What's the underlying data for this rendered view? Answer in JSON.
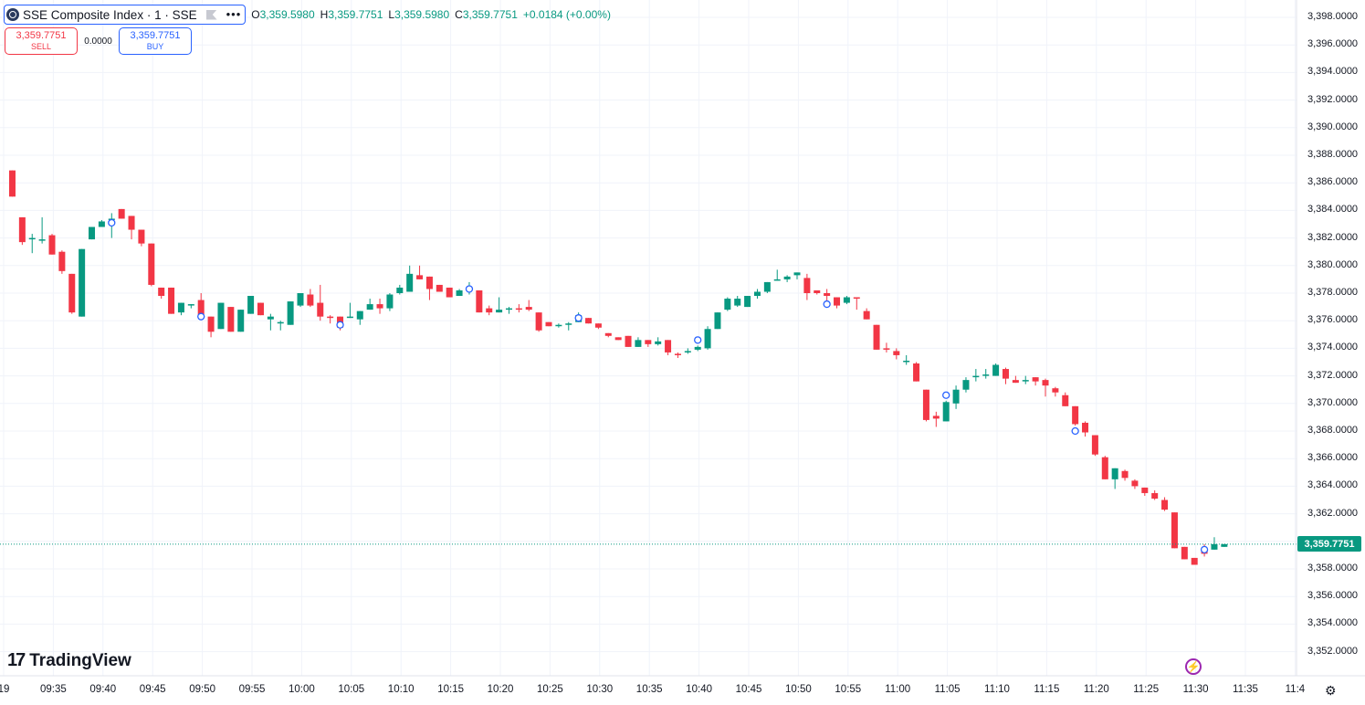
{
  "legend": {
    "symbol": "SSE Composite Index · 1 · SSE",
    "more_label": "•••",
    "ohlc": [
      {
        "key": "O",
        "value": "3,359.5980"
      },
      {
        "key": "H",
        "value": "3,359.7751"
      },
      {
        "key": "L",
        "value": "3,359.5980"
      },
      {
        "key": "C",
        "value": "3,359.7751"
      }
    ],
    "change": "+0.0184 (+0.00%)"
  },
  "trade": {
    "sell_price": "3,359.7751",
    "sell_label": "SELL",
    "spread": "0.0000",
    "buy_price": "3,359.7751",
    "buy_label": "BUY"
  },
  "price_axis": {
    "labels": [
      "3,398.0000",
      "3,396.0000",
      "3,394.0000",
      "3,392.0000",
      "3,390.0000",
      "3,388.0000",
      "3,386.0000",
      "3,384.0000",
      "3,382.0000",
      "3,380.0000",
      "3,378.0000",
      "3,376.0000",
      "3,374.0000",
      "3,372.0000",
      "3,370.0000",
      "3,368.0000",
      "3,366.0000",
      "3,364.0000",
      "3,362.0000",
      "3,360.0000",
      "3,358.0000",
      "3,356.0000",
      "3,354.0000",
      "3,352.0000"
    ],
    "last_price": "3,359.7751"
  },
  "time_axis": {
    "labels": [
      "19",
      "09:35",
      "09:40",
      "09:45",
      "09:50",
      "09:55",
      "10:00",
      "10:05",
      "10:10",
      "10:15",
      "10:20",
      "10:25",
      "10:30",
      "10:35",
      "10:40",
      "10:45",
      "10:50",
      "10:55",
      "11:00",
      "11:05",
      "11:10",
      "11:15",
      "11:20",
      "11:25",
      "11:30",
      "11:35",
      "11:4"
    ]
  },
  "branding": {
    "logo_mark": "17",
    "logo_text": "TradingView"
  },
  "colors": {
    "up": "#089981",
    "down": "#f23645",
    "grid": "#f0f3fa",
    "accent": "#2962ff"
  },
  "icons": {
    "flash": "flash-icon",
    "settings": "gear-icon",
    "symbol_logo": "exchange-logo-icon",
    "flag": "flag-icon"
  },
  "chart_data": {
    "type": "candlestick",
    "symbol": "SSE Composite Index",
    "interval": "1",
    "ylim": [
      3351,
      3399
    ],
    "grid": true,
    "candles": [
      {
        "t": "09:31",
        "o": 3386.9,
        "h": 3386.9,
        "l": 3385.0,
        "c": 3385.0
      },
      {
        "t": "09:32",
        "o": 3383.5,
        "h": 3383.5,
        "l": 3381.5,
        "c": 3381.7
      },
      {
        "t": "09:33",
        "o": 3381.9,
        "h": 3382.3,
        "l": 3380.9,
        "c": 3382.0
      },
      {
        "t": "09:34",
        "o": 3381.8,
        "h": 3383.5,
        "l": 3381.6,
        "c": 3381.9
      },
      {
        "t": "09:35",
        "o": 3382.2,
        "h": 3382.3,
        "l": 3380.8,
        "c": 3380.8
      },
      {
        "t": "09:36",
        "o": 3381.0,
        "h": 3381.1,
        "l": 3379.4,
        "c": 3379.6
      },
      {
        "t": "09:37",
        "o": 3379.4,
        "h": 3379.4,
        "l": 3376.5,
        "c": 3376.6
      },
      {
        "t": "09:38",
        "o": 3376.3,
        "h": 3381.2,
        "l": 3376.3,
        "c": 3381.2
      },
      {
        "t": "09:39",
        "o": 3381.9,
        "h": 3382.8,
        "l": 3381.9,
        "c": 3382.8
      },
      {
        "t": "09:40",
        "o": 3382.8,
        "h": 3383.3,
        "l": 3382.8,
        "c": 3383.2
      },
      {
        "t": "09:41",
        "o": 3383.4,
        "h": 3383.8,
        "l": 3382.0,
        "c": 3383.4
      },
      {
        "t": "09:42",
        "o": 3384.1,
        "h": 3384.1,
        "l": 3383.4,
        "c": 3383.4
      },
      {
        "t": "09:43",
        "o": 3383.6,
        "h": 3383.6,
        "l": 3381.9,
        "c": 3382.6
      },
      {
        "t": "09:44",
        "o": 3382.6,
        "h": 3382.6,
        "l": 3381.4,
        "c": 3381.6
      },
      {
        "t": "09:45",
        "o": 3381.6,
        "h": 3381.6,
        "l": 3378.5,
        "c": 3378.6
      },
      {
        "t": "09:46",
        "o": 3378.4,
        "h": 3378.4,
        "l": 3377.6,
        "c": 3377.8
      },
      {
        "t": "09:47",
        "o": 3378.4,
        "h": 3378.4,
        "l": 3376.5,
        "c": 3376.5
      },
      {
        "t": "09:48",
        "o": 3376.6,
        "h": 3377.3,
        "l": 3376.4,
        "c": 3377.3
      },
      {
        "t": "09:49",
        "o": 3377.2,
        "h": 3377.2,
        "l": 3376.9,
        "c": 3377.2
      },
      {
        "t": "09:50",
        "o": 3377.5,
        "h": 3378.0,
        "l": 3376.2,
        "c": 3376.3
      },
      {
        "t": "09:51",
        "o": 3376.3,
        "h": 3376.3,
        "l": 3374.8,
        "c": 3375.2
      },
      {
        "t": "09:52",
        "o": 3375.4,
        "h": 3377.3,
        "l": 3375.4,
        "c": 3377.3
      },
      {
        "t": "09:53",
        "o": 3377.0,
        "h": 3377.0,
        "l": 3375.2,
        "c": 3375.2
      },
      {
        "t": "09:54",
        "o": 3375.2,
        "h": 3376.8,
        "l": 3375.2,
        "c": 3376.8
      },
      {
        "t": "09:55",
        "o": 3376.5,
        "h": 3377.8,
        "l": 3376.5,
        "c": 3377.8
      },
      {
        "t": "09:56",
        "o": 3377.3,
        "h": 3377.3,
        "l": 3376.4,
        "c": 3376.4
      },
      {
        "t": "09:57",
        "o": 3376.1,
        "h": 3376.5,
        "l": 3375.3,
        "c": 3376.3
      },
      {
        "t": "09:58",
        "o": 3375.9,
        "h": 3376.0,
        "l": 3375.3,
        "c": 3375.9
      },
      {
        "t": "09:59",
        "o": 3375.7,
        "h": 3377.4,
        "l": 3375.7,
        "c": 3377.4
      },
      {
        "t": "10:00",
        "o": 3377.1,
        "h": 3378.0,
        "l": 3377.0,
        "c": 3378.0
      },
      {
        "t": "10:01",
        "o": 3377.9,
        "h": 3378.3,
        "l": 3377.0,
        "c": 3377.1
      },
      {
        "t": "10:02",
        "o": 3377.3,
        "h": 3378.6,
        "l": 3376.0,
        "c": 3376.3
      },
      {
        "t": "10:03",
        "o": 3376.3,
        "h": 3376.4,
        "l": 3375.8,
        "c": 3376.2
      },
      {
        "t": "10:04",
        "o": 3376.3,
        "h": 3376.3,
        "l": 3375.3,
        "c": 3375.5
      },
      {
        "t": "10:05",
        "o": 3376.3,
        "h": 3377.3,
        "l": 3376.2,
        "c": 3376.3
      },
      {
        "t": "10:06",
        "o": 3376.1,
        "h": 3376.7,
        "l": 3375.7,
        "c": 3376.7
      },
      {
        "t": "10:07",
        "o": 3376.8,
        "h": 3377.6,
        "l": 3376.8,
        "c": 3377.2
      },
      {
        "t": "10:08",
        "o": 3377.2,
        "h": 3377.6,
        "l": 3376.5,
        "c": 3376.9
      },
      {
        "t": "10:09",
        "o": 3376.9,
        "h": 3378.0,
        "l": 3376.7,
        "c": 3377.9
      },
      {
        "t": "10:10",
        "o": 3378.0,
        "h": 3378.6,
        "l": 3377.9,
        "c": 3378.4
      },
      {
        "t": "10:11",
        "o": 3378.1,
        "h": 3380.0,
        "l": 3378.1,
        "c": 3379.4
      },
      {
        "t": "10:12",
        "o": 3379.3,
        "h": 3380.0,
        "l": 3379.0,
        "c": 3379.0
      },
      {
        "t": "10:13",
        "o": 3379.2,
        "h": 3379.2,
        "l": 3377.5,
        "c": 3378.3
      },
      {
        "t": "10:14",
        "o": 3378.6,
        "h": 3378.6,
        "l": 3378.1,
        "c": 3378.1
      },
      {
        "t": "10:15",
        "o": 3378.4,
        "h": 3378.4,
        "l": 3377.7,
        "c": 3377.7
      },
      {
        "t": "10:16",
        "o": 3377.8,
        "h": 3378.3,
        "l": 3377.8,
        "c": 3378.2
      },
      {
        "t": "10:17",
        "o": 3378.3,
        "h": 3378.8,
        "l": 3377.9,
        "c": 3378.3
      },
      {
        "t": "10:18",
        "o": 3378.2,
        "h": 3378.2,
        "l": 3376.6,
        "c": 3376.6
      },
      {
        "t": "10:19",
        "o": 3376.9,
        "h": 3377.1,
        "l": 3376.4,
        "c": 3376.6
      },
      {
        "t": "10:20",
        "o": 3376.6,
        "h": 3377.7,
        "l": 3376.6,
        "c": 3376.8
      },
      {
        "t": "10:21",
        "o": 3376.8,
        "h": 3377.0,
        "l": 3376.5,
        "c": 3376.9
      },
      {
        "t": "10:22",
        "o": 3376.9,
        "h": 3377.2,
        "l": 3376.6,
        "c": 3376.8
      },
      {
        "t": "10:23",
        "o": 3377.0,
        "h": 3377.5,
        "l": 3376.7,
        "c": 3376.8
      },
      {
        "t": "10:24",
        "o": 3376.6,
        "h": 3376.6,
        "l": 3375.2,
        "c": 3375.3
      },
      {
        "t": "10:25",
        "o": 3375.9,
        "h": 3375.9,
        "l": 3375.6,
        "c": 3375.6
      },
      {
        "t": "10:26",
        "o": 3375.7,
        "h": 3375.8,
        "l": 3375.5,
        "c": 3375.7
      },
      {
        "t": "10:27",
        "o": 3375.8,
        "h": 3375.9,
        "l": 3375.3,
        "c": 3375.8
      },
      {
        "t": "10:28",
        "o": 3375.9,
        "h": 3376.6,
        "l": 3375.9,
        "c": 3376.4
      },
      {
        "t": "10:29",
        "o": 3376.2,
        "h": 3376.2,
        "l": 3375.8,
        "c": 3375.8
      },
      {
        "t": "10:30",
        "o": 3375.8,
        "h": 3375.8,
        "l": 3375.4,
        "c": 3375.5
      },
      {
        "t": "10:31",
        "o": 3375.1,
        "h": 3375.1,
        "l": 3374.8,
        "c": 3374.9
      },
      {
        "t": "10:32",
        "o": 3374.8,
        "h": 3374.8,
        "l": 3374.6,
        "c": 3374.6
      },
      {
        "t": "10:33",
        "o": 3374.9,
        "h": 3374.9,
        "l": 3374.1,
        "c": 3374.1
      },
      {
        "t": "10:34",
        "o": 3374.1,
        "h": 3374.8,
        "l": 3374.1,
        "c": 3374.6
      },
      {
        "t": "10:35",
        "o": 3374.6,
        "h": 3374.6,
        "l": 3374.1,
        "c": 3374.3
      },
      {
        "t": "10:36",
        "o": 3374.3,
        "h": 3374.8,
        "l": 3374.2,
        "c": 3374.5
      },
      {
        "t": "10:37",
        "o": 3374.6,
        "h": 3374.6,
        "l": 3373.5,
        "c": 3373.7
      },
      {
        "t": "10:38",
        "o": 3373.6,
        "h": 3373.7,
        "l": 3373.3,
        "c": 3373.5
      },
      {
        "t": "10:39",
        "o": 3373.7,
        "h": 3374.0,
        "l": 3373.6,
        "c": 3373.8
      },
      {
        "t": "10:40",
        "o": 3373.9,
        "h": 3374.2,
        "l": 3373.8,
        "c": 3374.1
      },
      {
        "t": "10:41",
        "o": 3374.0,
        "h": 3375.6,
        "l": 3373.9,
        "c": 3375.4
      },
      {
        "t": "10:42",
        "o": 3375.4,
        "h": 3376.6,
        "l": 3375.4,
        "c": 3376.6
      },
      {
        "t": "10:43",
        "o": 3376.8,
        "h": 3377.7,
        "l": 3376.7,
        "c": 3377.6
      },
      {
        "t": "10:44",
        "o": 3377.1,
        "h": 3377.8,
        "l": 3377.0,
        "c": 3377.6
      },
      {
        "t": "10:45",
        "o": 3377.0,
        "h": 3377.8,
        "l": 3377.0,
        "c": 3377.8
      },
      {
        "t": "10:46",
        "o": 3377.8,
        "h": 3378.3,
        "l": 3377.6,
        "c": 3378.1
      },
      {
        "t": "10:47",
        "o": 3378.1,
        "h": 3378.8,
        "l": 3378.0,
        "c": 3378.8
      },
      {
        "t": "10:48",
        "o": 3378.9,
        "h": 3379.7,
        "l": 3378.9,
        "c": 3379.0
      },
      {
        "t": "10:49",
        "o": 3379.0,
        "h": 3379.3,
        "l": 3378.8,
        "c": 3379.2
      },
      {
        "t": "10:50",
        "o": 3379.3,
        "h": 3379.5,
        "l": 3379.0,
        "c": 3379.5
      },
      {
        "t": "10:51",
        "o": 3379.1,
        "h": 3379.4,
        "l": 3377.5,
        "c": 3378.0
      },
      {
        "t": "10:52",
        "o": 3378.2,
        "h": 3378.2,
        "l": 3377.9,
        "c": 3378.0
      },
      {
        "t": "10:53",
        "o": 3378.0,
        "h": 3378.3,
        "l": 3377.4,
        "c": 3377.8
      },
      {
        "t": "10:54",
        "o": 3377.7,
        "h": 3377.7,
        "l": 3376.9,
        "c": 3377.1
      },
      {
        "t": "10:55",
        "o": 3377.3,
        "h": 3377.8,
        "l": 3377.2,
        "c": 3377.7
      },
      {
        "t": "10:56",
        "o": 3377.7,
        "h": 3377.7,
        "l": 3376.8,
        "c": 3377.6
      },
      {
        "t": "10:57",
        "o": 3376.7,
        "h": 3376.9,
        "l": 3376.1,
        "c": 3376.1
      },
      {
        "t": "10:58",
        "o": 3375.7,
        "h": 3375.7,
        "l": 3373.9,
        "c": 3373.9
      },
      {
        "t": "10:59",
        "o": 3374.0,
        "h": 3374.4,
        "l": 3373.7,
        "c": 3373.9
      },
      {
        "t": "11:00",
        "o": 3373.8,
        "h": 3374.0,
        "l": 3373.2,
        "c": 3373.5
      },
      {
        "t": "11:01",
        "o": 3373.1,
        "h": 3373.5,
        "l": 3372.8,
        "c": 3373.1
      },
      {
        "t": "11:02",
        "o": 3372.9,
        "h": 3373.0,
        "l": 3371.6,
        "c": 3371.6
      },
      {
        "t": "11:03",
        "o": 3371.0,
        "h": 3371.0,
        "l": 3368.7,
        "c": 3368.8
      },
      {
        "t": "11:04",
        "o": 3369.1,
        "h": 3369.4,
        "l": 3368.3,
        "c": 3368.9
      },
      {
        "t": "11:05",
        "o": 3368.7,
        "h": 3370.2,
        "l": 3368.7,
        "c": 3370.1
      },
      {
        "t": "11:06",
        "o": 3370.0,
        "h": 3371.3,
        "l": 3369.6,
        "c": 3371.0
      },
      {
        "t": "11:07",
        "o": 3371.0,
        "h": 3371.9,
        "l": 3370.8,
        "c": 3371.7
      },
      {
        "t": "11:08",
        "o": 3372.0,
        "h": 3372.5,
        "l": 3371.6,
        "c": 3372.0
      },
      {
        "t": "11:09",
        "o": 3372.1,
        "h": 3372.5,
        "l": 3371.8,
        "c": 3372.1
      },
      {
        "t": "11:10",
        "o": 3372.0,
        "h": 3372.9,
        "l": 3372.0,
        "c": 3372.8
      },
      {
        "t": "11:11",
        "o": 3372.5,
        "h": 3372.6,
        "l": 3371.4,
        "c": 3371.8
      },
      {
        "t": "11:12",
        "o": 3371.7,
        "h": 3372.0,
        "l": 3371.5,
        "c": 3371.5
      },
      {
        "t": "11:13",
        "o": 3371.7,
        "h": 3372.0,
        "l": 3371.4,
        "c": 3371.7
      },
      {
        "t": "11:14",
        "o": 3371.9,
        "h": 3371.9,
        "l": 3371.3,
        "c": 3371.6
      },
      {
        "t": "11:15",
        "o": 3371.7,
        "h": 3371.8,
        "l": 3370.5,
        "c": 3371.3
      },
      {
        "t": "11:16",
        "o": 3371.1,
        "h": 3371.2,
        "l": 3370.5,
        "c": 3370.8
      },
      {
        "t": "11:17",
        "o": 3370.6,
        "h": 3370.8,
        "l": 3369.8,
        "c": 3369.8
      },
      {
        "t": "11:18",
        "o": 3369.8,
        "h": 3369.8,
        "l": 3368.4,
        "c": 3368.5
      },
      {
        "t": "11:19",
        "o": 3368.6,
        "h": 3368.7,
        "l": 3367.6,
        "c": 3367.9
      },
      {
        "t": "11:20",
        "o": 3367.7,
        "h": 3367.7,
        "l": 3366.2,
        "c": 3366.3
      },
      {
        "t": "11:21",
        "o": 3366.1,
        "h": 3366.2,
        "l": 3364.5,
        "c": 3364.5
      },
      {
        "t": "11:22",
        "o": 3364.5,
        "h": 3365.3,
        "l": 3363.8,
        "c": 3365.3
      },
      {
        "t": "11:23",
        "o": 3365.1,
        "h": 3365.2,
        "l": 3364.4,
        "c": 3364.6
      },
      {
        "t": "11:24",
        "o": 3364.4,
        "h": 3364.5,
        "l": 3363.8,
        "c": 3364.0
      },
      {
        "t": "11:25",
        "o": 3363.9,
        "h": 3363.9,
        "l": 3363.3,
        "c": 3363.5
      },
      {
        "t": "11:26",
        "o": 3363.5,
        "h": 3363.7,
        "l": 3363.0,
        "c": 3363.1
      },
      {
        "t": "11:27",
        "o": 3363.0,
        "h": 3363.2,
        "l": 3362.2,
        "c": 3362.3
      },
      {
        "t": "11:28",
        "o": 3362.1,
        "h": 3362.1,
        "l": 3359.5,
        "c": 3359.5
      },
      {
        "t": "11:29",
        "o": 3359.6,
        "h": 3359.6,
        "l": 3358.7,
        "c": 3358.7
      },
      {
        "t": "11:30",
        "o": 3358.8,
        "h": 3358.8,
        "l": 3358.3,
        "c": 3358.3
      },
      {
        "t": "11:31",
        "o": 3359.3,
        "h": 3359.8,
        "l": 3358.9,
        "c": 3359.1
      },
      {
        "t": "11:32",
        "o": 3359.4,
        "h": 3360.3,
        "l": 3359.4,
        "c": 3359.8
      },
      {
        "t": "11:33",
        "o": 3359.6,
        "h": 3359.8,
        "l": 3359.6,
        "c": 3359.8
      }
    ],
    "markers": [
      {
        "t": "09:41",
        "price": 3383.1
      },
      {
        "t": "09:50",
        "price": 3376.3
      },
      {
        "t": "10:04",
        "price": 3375.7
      },
      {
        "t": "10:17",
        "price": 3378.3
      },
      {
        "t": "10:28",
        "price": 3376.2
      },
      {
        "t": "10:40",
        "price": 3374.6
      },
      {
        "t": "10:53",
        "price": 3377.2
      },
      {
        "t": "11:05",
        "price": 3370.6
      },
      {
        "t": "11:18",
        "price": 3368.0
      },
      {
        "t": "11:31",
        "price": 3359.4
      }
    ]
  }
}
